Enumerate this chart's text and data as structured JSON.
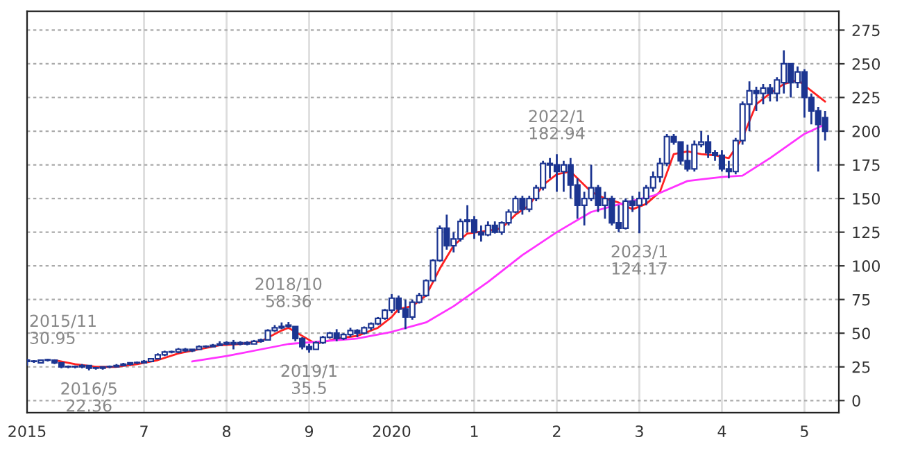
{
  "chart_data": {
    "type": "candlestick",
    "color": "#1c3591",
    "x": [
      "2015-08",
      "2015-09",
      "2015-10",
      "2015-11",
      "2015-12",
      "2016-01",
      "2016-02",
      "2016-03",
      "2016-04",
      "2016-05",
      "2016-06",
      "2016-07",
      "2016-08",
      "2016-09",
      "2016-10",
      "2016-11",
      "2016-12",
      "2017-01",
      "2017-02",
      "2017-03",
      "2017-04",
      "2017-05",
      "2017-06",
      "2017-07",
      "2017-08",
      "2017-09",
      "2017-10",
      "2017-11",
      "2017-12",
      "2018-01",
      "2018-02",
      "2018-03",
      "2018-04",
      "2018-05",
      "2018-06",
      "2018-07",
      "2018-08",
      "2018-09",
      "2018-10",
      "2018-11",
      "2018-12",
      "2019-01",
      "2019-02",
      "2019-03",
      "2019-04",
      "2019-05",
      "2019-06",
      "2019-07",
      "2019-08",
      "2019-09",
      "2019-10",
      "2019-11",
      "2019-12",
      "2020-01",
      "2020-02",
      "2020-03",
      "2020-04",
      "2020-05",
      "2020-06",
      "2020-07",
      "2020-08",
      "2020-09",
      "2020-10",
      "2020-11",
      "2020-12",
      "2021-01",
      "2021-02",
      "2021-03",
      "2021-04",
      "2021-05",
      "2021-06",
      "2021-07",
      "2021-08",
      "2021-09",
      "2021-10",
      "2021-11",
      "2021-12",
      "2022-01",
      "2022-02",
      "2022-03",
      "2022-04",
      "2022-05",
      "2022-06",
      "2022-07",
      "2022-08",
      "2022-09",
      "2022-10",
      "2022-11",
      "2022-12",
      "2023-01",
      "2023-02",
      "2023-03",
      "2023-04",
      "2023-05",
      "2023-06",
      "2023-07",
      "2023-08",
      "2023-09",
      "2023-10",
      "2023-11",
      "2023-12",
      "2024-01",
      "2024-02",
      "2024-03",
      "2024-04",
      "2024-05",
      "2024-06",
      "2024-07",
      "2024-08",
      "2024-09",
      "2024-10",
      "2024-11",
      "2024-12",
      "2025-01",
      "2025-02",
      "2025-03",
      "2025-04"
    ],
    "ohlc": [
      [
        30,
        31,
        26,
        29
      ],
      [
        29,
        30,
        28,
        29
      ],
      [
        28,
        30,
        28,
        30
      ],
      [
        30,
        30.95,
        29,
        30
      ],
      [
        30,
        30,
        27,
        28
      ],
      [
        28,
        28,
        24,
        25
      ],
      [
        25,
        26,
        24,
        25
      ],
      [
        25,
        26,
        24,
        25
      ],
      [
        25,
        27,
        24,
        26
      ],
      [
        26,
        26,
        22.36,
        24
      ],
      [
        24,
        25,
        23,
        24
      ],
      [
        24,
        25,
        23,
        25
      ],
      [
        25,
        26,
        24,
        25
      ],
      [
        25,
        27,
        25,
        26
      ],
      [
        26,
        28,
        26,
        27
      ],
      [
        27,
        28,
        26,
        28
      ],
      [
        28,
        29,
        27,
        28
      ],
      [
        28,
        30,
        28,
        29
      ],
      [
        29,
        31,
        29,
        31
      ],
      [
        31,
        35,
        31,
        34
      ],
      [
        34,
        37,
        33,
        36
      ],
      [
        36,
        37,
        35,
        36
      ],
      [
        36,
        39,
        35,
        38
      ],
      [
        38,
        39,
        36,
        37
      ],
      [
        37,
        38,
        36,
        38
      ],
      [
        38,
        41,
        38,
        40
      ],
      [
        40,
        41,
        39,
        40
      ],
      [
        40,
        42,
        40,
        41
      ],
      [
        41,
        44,
        41,
        42
      ],
      [
        42,
        44,
        41,
        43
      ],
      [
        43,
        45,
        38,
        42
      ],
      [
        42,
        44,
        41,
        43
      ],
      [
        43,
        44,
        41,
        42
      ],
      [
        42,
        45,
        42,
        44
      ],
      [
        44,
        46,
        43,
        45
      ],
      [
        45,
        53,
        45,
        52
      ],
      [
        52,
        56,
        51,
        54
      ],
      [
        54,
        58,
        53,
        55
      ],
      [
        56,
        58.36,
        54,
        55
      ],
      [
        55,
        55,
        44,
        46
      ],
      [
        46,
        47,
        38,
        40
      ],
      [
        40,
        42,
        35.5,
        38
      ],
      [
        38,
        44,
        38,
        43
      ],
      [
        43,
        48,
        42,
        47
      ],
      [
        47,
        51,
        46,
        50
      ],
      [
        50,
        53,
        44,
        46
      ],
      [
        46,
        50,
        45,
        49
      ],
      [
        49,
        54,
        47,
        52
      ],
      [
        52,
        53,
        47,
        50
      ],
      [
        50,
        55,
        49,
        54
      ],
      [
        54,
        58,
        52,
        57
      ],
      [
        57,
        62,
        56,
        61
      ],
      [
        61,
        68,
        60,
        67
      ],
      [
        67,
        79,
        65,
        76
      ],
      [
        76,
        78,
        65,
        68
      ],
      [
        68,
        75,
        53,
        62
      ],
      [
        62,
        75,
        60,
        73
      ],
      [
        73,
        80,
        72,
        78
      ],
      [
        78,
        90,
        77,
        89
      ],
      [
        89,
        105,
        88,
        104
      ],
      [
        104,
        130,
        103,
        128
      ],
      [
        128,
        138,
        112,
        115
      ],
      [
        115,
        125,
        110,
        120
      ],
      [
        120,
        135,
        118,
        133
      ],
      [
        133,
        145,
        125,
        134
      ],
      [
        134,
        137,
        120,
        125
      ],
      [
        125,
        130,
        118,
        123
      ],
      [
        123,
        133,
        122,
        130
      ],
      [
        130,
        133,
        124,
        125
      ],
      [
        125,
        133,
        123,
        132
      ],
      [
        132,
        142,
        130,
        140
      ],
      [
        140,
        152,
        139,
        150
      ],
      [
        150,
        152,
        138,
        142
      ],
      [
        142,
        152,
        140,
        150
      ],
      [
        150,
        160,
        148,
        158
      ],
      [
        158,
        178,
        156,
        176
      ],
      [
        176,
        180,
        165,
        175
      ],
      [
        175,
        182.94,
        155,
        170
      ],
      [
        170,
        178,
        155,
        175
      ],
      [
        175,
        180,
        150,
        160
      ],
      [
        160,
        165,
        135,
        145
      ],
      [
        145,
        155,
        130,
        150
      ],
      [
        150,
        175,
        148,
        158
      ],
      [
        158,
        160,
        140,
        145
      ],
      [
        145,
        155,
        135,
        150
      ],
      [
        150,
        152,
        130,
        132
      ],
      [
        132,
        145,
        125,
        128
      ],
      [
        128,
        150,
        127,
        148
      ],
      [
        148,
        152,
        140,
        145
      ],
      [
        145,
        155,
        124.17,
        150
      ],
      [
        150,
        160,
        145,
        158
      ],
      [
        158,
        170,
        155,
        166
      ],
      [
        166,
        180,
        162,
        176
      ],
      [
        176,
        198,
        174,
        196
      ],
      [
        196,
        198,
        190,
        192
      ],
      [
        192,
        192,
        175,
        178
      ],
      [
        178,
        190,
        170,
        172
      ],
      [
        172,
        193,
        170,
        190
      ],
      [
        190,
        200,
        188,
        192
      ],
      [
        192,
        197,
        180,
        184
      ],
      [
        184,
        186,
        178,
        182
      ],
      [
        182,
        186,
        170,
        172
      ],
      [
        172,
        178,
        165,
        170
      ],
      [
        170,
        195,
        168,
        193
      ],
      [
        193,
        222,
        190,
        220
      ],
      [
        220,
        237,
        200,
        230
      ],
      [
        230,
        233,
        215,
        228
      ],
      [
        228,
        235,
        220,
        232
      ],
      [
        232,
        235,
        222,
        228
      ],
      [
        228,
        240,
        222,
        238
      ],
      [
        236,
        260,
        228,
        250
      ],
      [
        250,
        250,
        225,
        236
      ],
      [
        236,
        248,
        232,
        244
      ],
      [
        244,
        246,
        210,
        225
      ],
      [
        225,
        228,
        205,
        215
      ],
      [
        215,
        218,
        170,
        205
      ],
      [
        210,
        215,
        193,
        200
      ]
    ],
    "series": [
      {
        "type": "line",
        "color": "#ff2020",
        "x": [
          "2015-12",
          "2016-03",
          "2016-06",
          "2016-09",
          "2016-12",
          "2017-03",
          "2017-06",
          "2017-09",
          "2017-12",
          "2018-03",
          "2018-06",
          "2018-09",
          "2018-10",
          "2018-12",
          "2019-02",
          "2019-05",
          "2019-08",
          "2019-11",
          "2020-01",
          "2020-02",
          "2020-04",
          "2020-06",
          "2020-08",
          "2020-10",
          "2020-12",
          "2021-03",
          "2021-05",
          "2021-07",
          "2021-09",
          "2021-11",
          "2022-01",
          "2022-03",
          "2022-05",
          "2022-06",
          "2022-08",
          "2022-10",
          "2022-12",
          "2023-02",
          "2023-04",
          "2023-06",
          "2023-08",
          "2023-10",
          "2023-12",
          "2024-02",
          "2024-04",
          "2024-06",
          "2024-08",
          "2024-10",
          "2024-12",
          "2025-02",
          "2025-04"
        ],
        "values": [
          30,
          27,
          25,
          25,
          27,
          30,
          35,
          38,
          41,
          42,
          44,
          52,
          54,
          48,
          42,
          46,
          48,
          54,
          62,
          68,
          70,
          78,
          98,
          115,
          124,
          126,
          128,
          138,
          145,
          160,
          168,
          170,
          160,
          155,
          150,
          147,
          142,
          146,
          155,
          183,
          185,
          183,
          182,
          180,
          195,
          220,
          228,
          235,
          238,
          230,
          222
        ]
      },
      {
        "type": "line",
        "color": "#ff33ff",
        "x": [
          "2017-08",
          "2018-01",
          "2018-06",
          "2018-10",
          "2019-03",
          "2019-08",
          "2020-01",
          "2020-06",
          "2020-10",
          "2021-03",
          "2021-08",
          "2022-01",
          "2022-06",
          "2022-11",
          "2023-03",
          "2023-08",
          "2024-01",
          "2024-04",
          "2024-08",
          "2025-01",
          "2025-04"
        ],
        "values": [
          29,
          33,
          38,
          42,
          44,
          46,
          51,
          58,
          70,
          88,
          108,
          125,
          140,
          147,
          152,
          163,
          166,
          167,
          180,
          198,
          205
        ]
      }
    ],
    "xlim": [
      "2015-08",
      "2025-06"
    ],
    "xticks": [
      {
        "value": "2015-08",
        "label": "2015"
      },
      {
        "value": "2017-01",
        "label": "7"
      },
      {
        "value": "2018-01",
        "label": "8"
      },
      {
        "value": "2019-01",
        "label": "9"
      },
      {
        "value": "2020-01",
        "label": "2020"
      },
      {
        "value": "2021-01",
        "label": "1"
      },
      {
        "value": "2022-01",
        "label": "2"
      },
      {
        "value": "2023-01",
        "label": "3"
      },
      {
        "value": "2024-01",
        "label": "4"
      },
      {
        "value": "2025-01",
        "label": "5"
      }
    ],
    "ylim": [
      -9,
      289
    ],
    "yticks": [
      0,
      25,
      50,
      75,
      100,
      125,
      150,
      175,
      200,
      225,
      250,
      275
    ],
    "grid": true,
    "annotations": [
      {
        "text": "2015/11\n30.95",
        "x": "2015-11",
        "y": 30.95
      },
      {
        "text": "2016/5\n22.36",
        "x": "2016-05",
        "y": 22.36
      },
      {
        "text": "2018/10\n58.36",
        "x": "2018-10",
        "y": 58.36
      },
      {
        "text": "2019/1\n35.5",
        "x": "2019-01",
        "y": 35.5
      },
      {
        "text": "2022/1\n182.94",
        "x": "2022-01",
        "y": 182.94
      },
      {
        "text": "2023/1\n124.17",
        "x": "2023-01",
        "y": 124.17
      }
    ]
  }
}
